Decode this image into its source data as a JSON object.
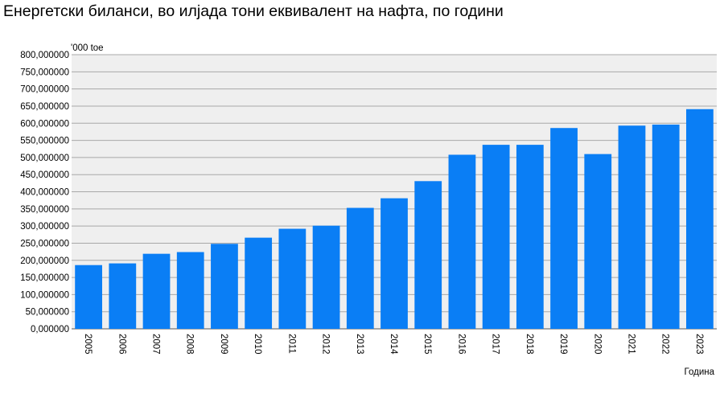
{
  "chart_data": {
    "type": "bar",
    "title": "Енергетски биланси, во илјада тони еквивалент на нафта, по години",
    "ylabel": "'000 toe",
    "xlabel": "Година",
    "categories": [
      "2005",
      "2006",
      "2007",
      "2008",
      "2009",
      "2010",
      "2011",
      "2012",
      "2013",
      "2014",
      "2015",
      "2016",
      "2017",
      "2018",
      "2019",
      "2020",
      "2021",
      "2022",
      "2023"
    ],
    "values": [
      186,
      191,
      219,
      224,
      248,
      266,
      292,
      301,
      353,
      381,
      431,
      508,
      537,
      537,
      586,
      510,
      593,
      596,
      641
    ],
    "y_ticks": [
      "0,000000",
      "50,000000",
      "100,000000",
      "150,000000",
      "200,000000",
      "250,000000",
      "300,000000",
      "350,000000",
      "400,000000",
      "450,000000",
      "500,000000",
      "550,000000",
      "600,000000",
      "650,000000",
      "700,000000",
      "750,000000",
      "800,000000"
    ],
    "ylim": [
      0,
      800
    ],
    "grid": true,
    "colors": {
      "bar": "#0a7ef5",
      "plot_bg": "#efefef",
      "grid": "#a8a8a8"
    }
  }
}
